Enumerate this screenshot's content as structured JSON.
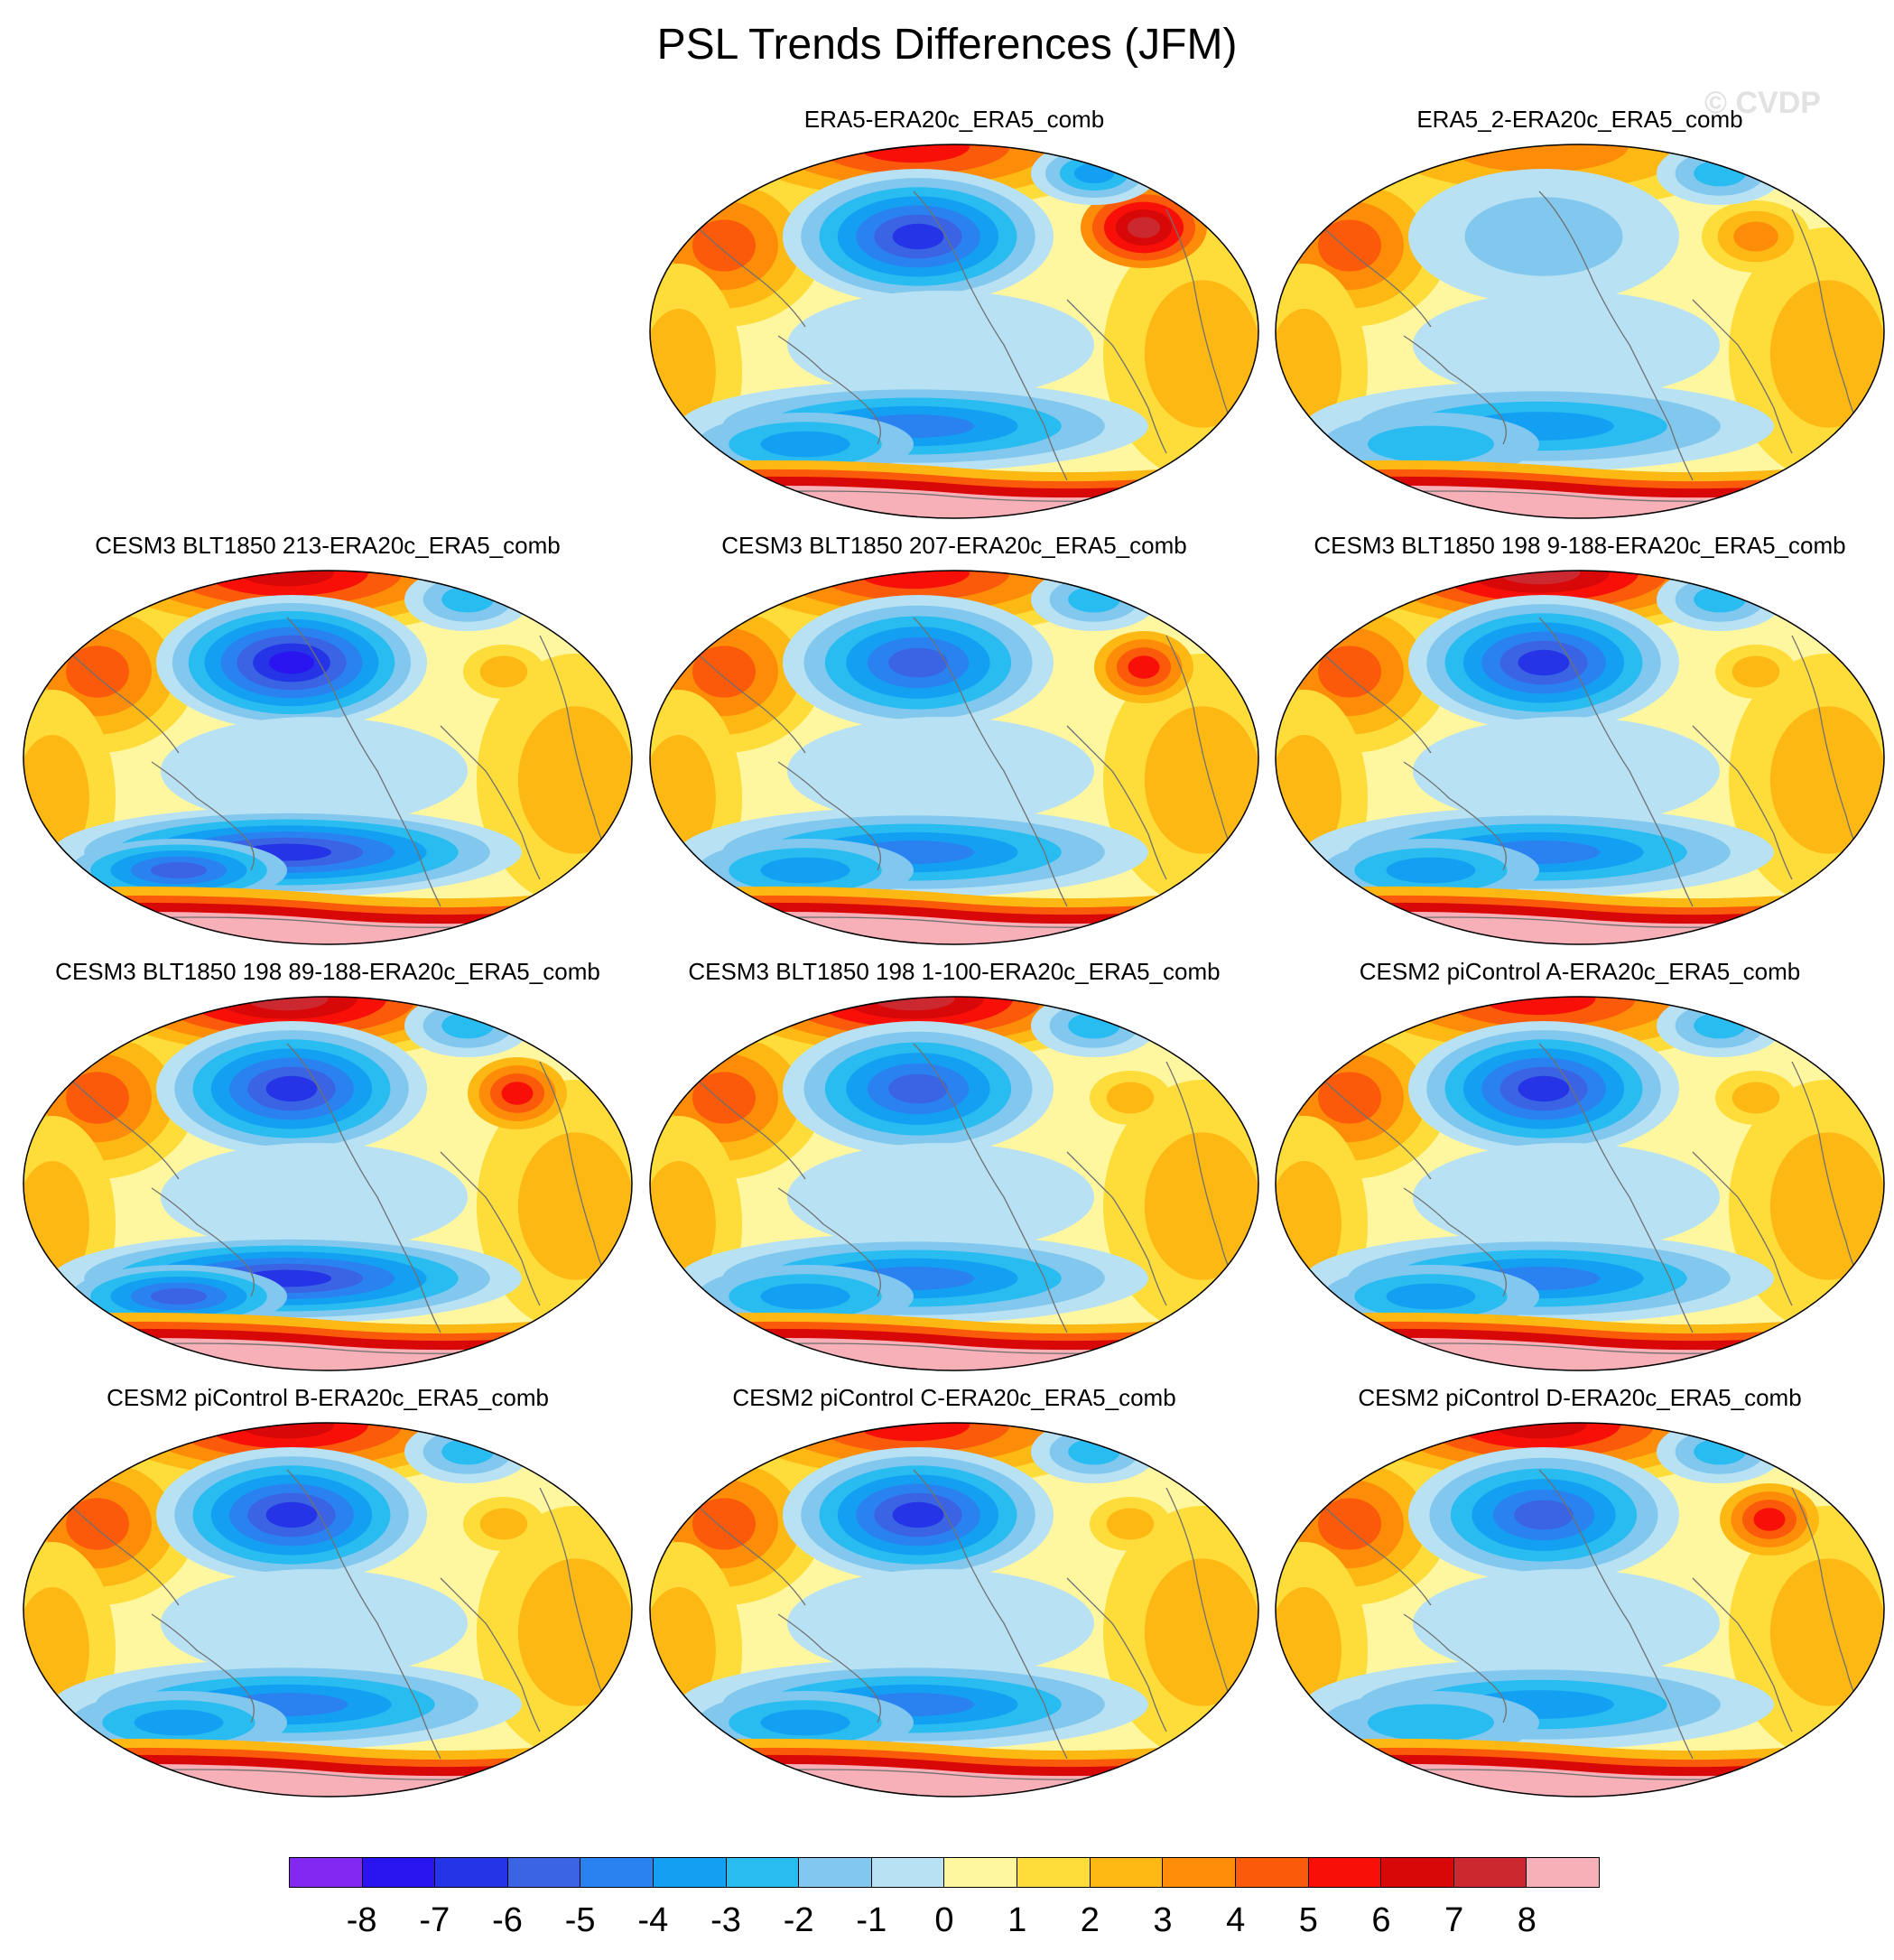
{
  "title": "PSL Trends Differences (JFM)",
  "watermark": "© CVDP",
  "panels": [
    {
      "title": "ERA5-ERA20c_ERA5_comb",
      "variant": 0
    },
    {
      "title": "ERA5_2-ERA20c_ERA5_comb",
      "variant": 1
    },
    {
      "title": "CESM3 BLT1850 213-ERA20c_ERA5_comb",
      "variant": 2
    },
    {
      "title": "CESM3 BLT1850 207-ERA20c_ERA5_comb",
      "variant": 3
    },
    {
      "title": "CESM3 BLT1850 198 9-188-ERA20c_ERA5_comb",
      "variant": 4
    },
    {
      "title": "CESM3 BLT1850 198 89-188-ERA20c_ERA5_comb",
      "variant": 5
    },
    {
      "title": "CESM3 BLT1850 198 1-100-ERA20c_ERA5_comb",
      "variant": 6
    },
    {
      "title": "CESM2 piControl A-ERA20c_ERA5_comb",
      "variant": 7
    },
    {
      "title": "CESM2 piControl B-ERA20c_ERA5_comb",
      "variant": 8
    },
    {
      "title": "CESM2 piControl C-ERA20c_ERA5_comb",
      "variant": 9
    },
    {
      "title": "CESM2 piControl D-ERA20c_ERA5_comb",
      "variant": 10
    }
  ],
  "colorbar": {
    "labels": [
      "-8",
      "-7",
      "-6",
      "-5",
      "-4",
      "-3",
      "-2",
      "-1",
      "0",
      "1",
      "2",
      "3",
      "4",
      "5",
      "6",
      "7",
      "8"
    ],
    "colors": [
      "#8228f0",
      "#2a14f0",
      "#2434e6",
      "#3a64e4",
      "#2a82f0",
      "#14a0f2",
      "#28bcf0",
      "#82c8ee",
      "#b8e2f4",
      "#fff6a0",
      "#fedc3a",
      "#fdb814",
      "#fd8c08",
      "#fa5a0a",
      "#f81008",
      "#d80808",
      "#cc2830",
      "#f8b0b8"
    ]
  }
}
